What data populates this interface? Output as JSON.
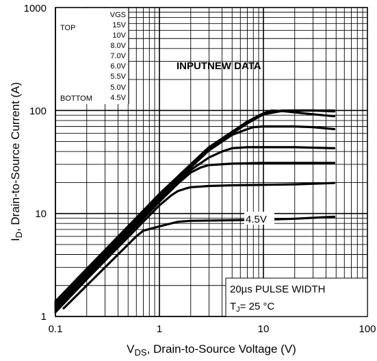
{
  "chart_data": {
    "type": "line",
    "x_scale": "log",
    "y_scale": "log",
    "xlim": [
      0.1,
      100
    ],
    "ylim": [
      1,
      1000
    ],
    "grid": true,
    "x_ticks": [
      "0.1",
      "1",
      "10",
      "100"
    ],
    "y_ticks": [
      "1",
      "10",
      "100",
      "1000"
    ],
    "xlabel_main": "V",
    "xlabel_sub": "DS",
    "xlabel_rest": ", Drain-to-Source Voltage (V)",
    "ylabel_main": "I",
    "ylabel_sub": "D",
    "ylabel_rest": ",  Drain-to-Source Current (A)",
    "legend": {
      "header": "VGS",
      "top_label": "TOP",
      "bottom_label": "BOTTOM",
      "entries": [
        "15V",
        "10V",
        "8.0V",
        "7.0V",
        "6.0V",
        "5.5V",
        "5.0V",
        "4.5V"
      ]
    },
    "annotations": {
      "input_label": "INPUTNEW DATA",
      "curve_label": "4.5V",
      "pulse_width": "20µs PULSE WIDTH",
      "tj_main": "T",
      "tj_sub": "J",
      "tj_rest": "= 25 °C"
    },
    "series": [
      {
        "x": [
          0.1,
          0.2,
          0.5,
          1,
          2,
          3,
          5,
          7,
          10,
          12,
          15,
          20,
          30,
          48
        ],
        "y": [
          1.4,
          2.9,
          7.5,
          15.5,
          30,
          44,
          62,
          78,
          94,
          100,
          99,
          96,
          92,
          88
        ]
      },
      {
        "x": [
          0.1,
          0.2,
          0.5,
          1,
          2,
          3,
          5,
          7,
          10,
          15,
          20,
          30,
          48
        ],
        "y": [
          1.35,
          2.8,
          7.3,
          15.2,
          30,
          44,
          62,
          78,
          92,
          99,
          100,
          100,
          98
        ]
      },
      {
        "x": [
          0.1,
          0.2,
          0.5,
          1,
          2,
          3,
          5,
          7,
          10,
          15,
          20,
          30,
          48
        ],
        "y": [
          1.3,
          2.7,
          7.1,
          14.8,
          29,
          43,
          60,
          75,
          92,
          100,
          100,
          100,
          100
        ]
      },
      {
        "x": [
          0.1,
          0.2,
          0.5,
          1,
          2,
          3,
          5,
          7,
          8,
          10,
          15,
          20,
          30,
          48
        ],
        "y": [
          1.25,
          2.6,
          6.9,
          14.3,
          28,
          41,
          58,
          66,
          69,
          70,
          70,
          70,
          69,
          66
        ]
      },
      {
        "x": [
          0.1,
          0.2,
          0.5,
          1,
          2,
          3,
          4,
          5,
          7,
          10,
          20,
          48
        ],
        "y": [
          1.2,
          2.5,
          6.6,
          13.8,
          26.5,
          35,
          40,
          43,
          44,
          44,
          44,
          43
        ]
      },
      {
        "x": [
          0.1,
          0.2,
          0.5,
          1,
          1.5,
          2,
          2.5,
          3,
          5,
          10,
          20,
          48
        ],
        "y": [
          1.15,
          2.4,
          6.3,
          13,
          19.5,
          25,
          28,
          29.5,
          30.5,
          31,
          31,
          31
        ]
      },
      {
        "x": [
          0.1,
          0.2,
          0.5,
          1,
          1.3,
          1.5,
          1.8,
          2,
          3,
          5,
          10,
          20,
          48
        ],
        "y": [
          1.1,
          2.3,
          5.9,
          12,
          15,
          16.5,
          17.5,
          18,
          18.5,
          18.8,
          19,
          19.2,
          19.8
        ]
      },
      {
        "x": [
          0.12,
          0.2,
          0.4,
          0.6,
          0.7,
          1,
          1.5,
          2,
          5,
          10,
          20,
          48
        ],
        "y": [
          1.2,
          2,
          4,
          6,
          6.8,
          7.5,
          8.3,
          8.5,
          8.6,
          8.7,
          8.9,
          9.3
        ]
      }
    ]
  }
}
